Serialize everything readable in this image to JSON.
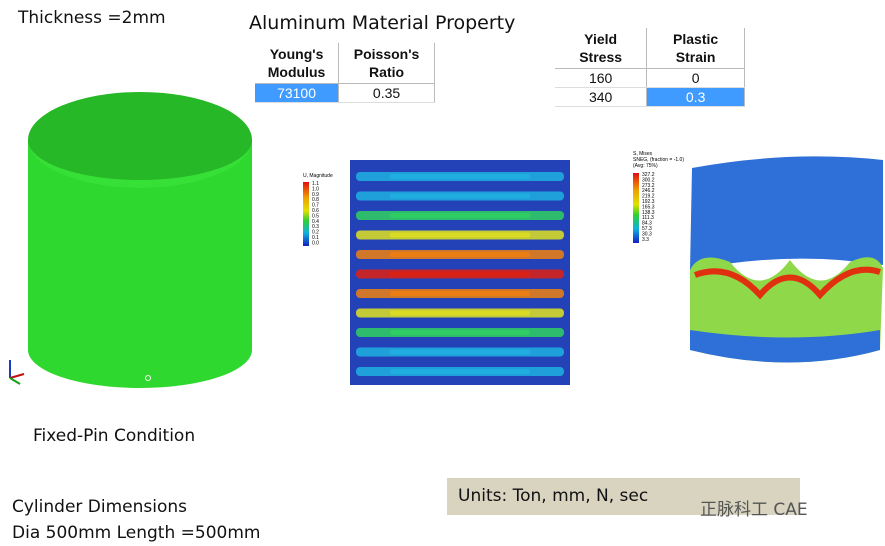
{
  "header": {
    "thickness": "Thickness =2mm",
    "title": "Aluminum Material Property"
  },
  "elastic_table": {
    "headers": [
      [
        "Young's",
        "Modulus"
      ],
      [
        "Poisson's",
        "Ratio"
      ]
    ],
    "rows": [
      [
        73100,
        0.35
      ]
    ]
  },
  "plastic_table": {
    "headers": [
      [
        "Yield",
        "Stress"
      ],
      [
        "Plastic",
        "Strain"
      ]
    ],
    "rows": [
      [
        160,
        0
      ],
      [
        340,
        0.3
      ]
    ]
  },
  "displacement_legend": {
    "title": "U, Magnitude",
    "labels": [
      "1.1",
      "1.0",
      "0.9",
      "0.8",
      "0.7",
      "0.6",
      "0.5",
      "0.4",
      "0.3",
      "0.2",
      "0.1",
      "0.0"
    ]
  },
  "stress_legend": {
    "title": "S, Mises",
    "subtitle": "SNEG, (fraction = -1.0)",
    "average": "(Avg: 75%)",
    "labels": [
      "327.2",
      "300.2",
      "273.2",
      "246.2",
      "219.2",
      "192.3",
      "165.3",
      "138.3",
      "111.3",
      "84.3",
      "57.3",
      "30.3",
      "3.3"
    ]
  },
  "notes": {
    "boundary": "Fixed-Pin Condition",
    "dimensions_title": "Cylinder Dimensions",
    "dimensions": "Dia 500mm Length =500mm",
    "units": "Units: Ton, mm, N, sec"
  },
  "watermark": "正脉科工 CAE"
}
